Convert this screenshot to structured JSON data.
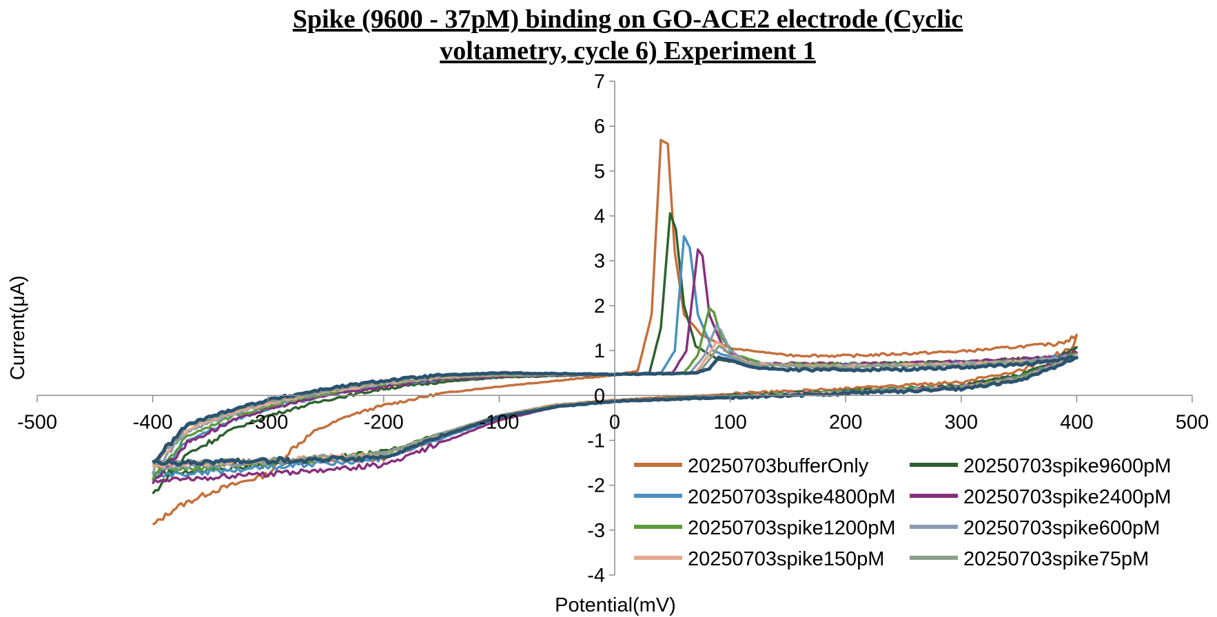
{
  "chart_data": {
    "type": "line",
    "title_lines": [
      "Spike (9600 - 37pM) binding on GO-ACE2 electrode (Cyclic",
      "voltametry, cycle 6) Experiment 1"
    ],
    "xlabel": "Potential(mV)",
    "ylabel": "Current(μA)",
    "xlim": [
      -500,
      500
    ],
    "ylim": [
      -4,
      7
    ],
    "xticks": [
      -500,
      -400,
      -300,
      -200,
      -100,
      0,
      100,
      200,
      300,
      400,
      500
    ],
    "yticks": [
      -4,
      -3,
      -2,
      -1,
      0,
      1,
      2,
      3,
      4,
      5,
      6,
      7
    ],
    "grid": false,
    "legend_position": "bottom-right",
    "series": [
      {
        "name": "20250703bufferOnly",
        "color": "#c4703c",
        "points": [
          [
            -400,
            -2.9
          ],
          [
            -380,
            -2.5
          ],
          [
            -350,
            -2.15
          ],
          [
            -300,
            -1.75
          ],
          [
            -280,
            -1.2
          ],
          [
            -260,
            -0.8
          ],
          [
            -230,
            -0.45
          ],
          [
            -200,
            -0.22
          ],
          [
            -150,
            0.05
          ],
          [
            -100,
            0.2
          ],
          [
            -50,
            0.33
          ],
          [
            0,
            0.45
          ],
          [
            20,
            0.55
          ],
          [
            32,
            1.8
          ],
          [
            40,
            5.7
          ],
          [
            46,
            5.6
          ],
          [
            52,
            3.2
          ],
          [
            60,
            1.8
          ],
          [
            75,
            1.35
          ],
          [
            100,
            1.05
          ],
          [
            150,
            0.9
          ],
          [
            200,
            0.88
          ],
          [
            300,
            0.98
          ],
          [
            380,
            1.15
          ],
          [
            400,
            1.3
          ],
          [
            395,
            1.05
          ],
          [
            350,
            0.55
          ],
          [
            300,
            0.3
          ],
          [
            200,
            0.15
          ],
          [
            100,
            0.03
          ],
          [
            0,
            -0.1
          ],
          [
            -50,
            -0.2
          ],
          [
            -100,
            -0.45
          ],
          [
            -150,
            -0.95
          ],
          [
            -200,
            -1.4
          ],
          [
            -300,
            -1.5
          ],
          [
            -400,
            -1.55
          ]
        ]
      },
      {
        "name": "20250703spike9600pM",
        "color": "#2e6130",
        "points": [
          [
            -400,
            -2.2
          ],
          [
            -370,
            -1.3
          ],
          [
            -330,
            -0.75
          ],
          [
            -300,
            -0.45
          ],
          [
            -250,
            -0.1
          ],
          [
            -200,
            0.15
          ],
          [
            -150,
            0.3
          ],
          [
            -100,
            0.4
          ],
          [
            0,
            0.47
          ],
          [
            30,
            0.5
          ],
          [
            40,
            1.5
          ],
          [
            48,
            4.05
          ],
          [
            53,
            3.7
          ],
          [
            60,
            2.0
          ],
          [
            70,
            1.1
          ],
          [
            90,
            0.8
          ],
          [
            120,
            0.68
          ],
          [
            200,
            0.7
          ],
          [
            300,
            0.75
          ],
          [
            380,
            0.85
          ],
          [
            400,
            1.05
          ],
          [
            390,
            0.85
          ],
          [
            350,
            0.45
          ],
          [
            300,
            0.22
          ],
          [
            200,
            0.1
          ],
          [
            100,
            0.0
          ],
          [
            0,
            -0.12
          ],
          [
            -50,
            -0.22
          ],
          [
            -100,
            -0.45
          ],
          [
            -150,
            -0.85
          ],
          [
            -200,
            -1.25
          ],
          [
            -300,
            -1.55
          ],
          [
            -400,
            -1.75
          ]
        ]
      },
      {
        "name": "20250703spike4800pM",
        "color": "#4a90c0",
        "points": [
          [
            -400,
            -1.9
          ],
          [
            -370,
            -1.0
          ],
          [
            -330,
            -0.55
          ],
          [
            -300,
            -0.3
          ],
          [
            -250,
            0.0
          ],
          [
            -200,
            0.22
          ],
          [
            -150,
            0.35
          ],
          [
            -100,
            0.43
          ],
          [
            0,
            0.47
          ],
          [
            40,
            0.5
          ],
          [
            52,
            1.0
          ],
          [
            60,
            3.55
          ],
          [
            65,
            3.3
          ],
          [
            72,
            1.8
          ],
          [
            85,
            1.0
          ],
          [
            110,
            0.75
          ],
          [
            150,
            0.68
          ],
          [
            250,
            0.7
          ],
          [
            350,
            0.78
          ],
          [
            400,
            0.95
          ],
          [
            390,
            0.8
          ],
          [
            350,
            0.4
          ],
          [
            300,
            0.2
          ],
          [
            200,
            0.08
          ],
          [
            100,
            -0.02
          ],
          [
            0,
            -0.12
          ],
          [
            -50,
            -0.22
          ],
          [
            -100,
            -0.5
          ],
          [
            -150,
            -0.95
          ],
          [
            -200,
            -1.4
          ],
          [
            -300,
            -1.6
          ],
          [
            -400,
            -1.8
          ]
        ]
      },
      {
        "name": "20250703spike2400pM",
        "color": "#85307c",
        "points": [
          [
            -400,
            -1.95
          ],
          [
            -370,
            -1.05
          ],
          [
            -330,
            -0.55
          ],
          [
            -300,
            -0.3
          ],
          [
            -250,
            0.0
          ],
          [
            -200,
            0.2
          ],
          [
            -150,
            0.35
          ],
          [
            -100,
            0.43
          ],
          [
            0,
            0.47
          ],
          [
            50,
            0.5
          ],
          [
            62,
            1.0
          ],
          [
            72,
            3.25
          ],
          [
            76,
            3.1
          ],
          [
            82,
            1.8
          ],
          [
            95,
            1.0
          ],
          [
            120,
            0.72
          ],
          [
            200,
            0.7
          ],
          [
            300,
            0.75
          ],
          [
            380,
            0.85
          ],
          [
            400,
            0.98
          ],
          [
            390,
            0.8
          ],
          [
            350,
            0.4
          ],
          [
            300,
            0.2
          ],
          [
            200,
            0.08
          ],
          [
            100,
            -0.02
          ],
          [
            0,
            -0.12
          ],
          [
            -50,
            -0.25
          ],
          [
            -100,
            -0.55
          ],
          [
            -150,
            -1.05
          ],
          [
            -200,
            -1.55
          ],
          [
            -300,
            -1.75
          ],
          [
            -400,
            -1.9
          ]
        ]
      },
      {
        "name": "20250703spike1200pM",
        "color": "#5e9a3e",
        "points": [
          [
            -400,
            -1.85
          ],
          [
            -370,
            -0.9
          ],
          [
            -330,
            -0.45
          ],
          [
            -300,
            -0.25
          ],
          [
            -250,
            0.05
          ],
          [
            -200,
            0.25
          ],
          [
            -150,
            0.38
          ],
          [
            -100,
            0.45
          ],
          [
            0,
            0.47
          ],
          [
            60,
            0.5
          ],
          [
            72,
            0.9
          ],
          [
            82,
            1.95
          ],
          [
            86,
            1.85
          ],
          [
            92,
            1.3
          ],
          [
            105,
            0.9
          ],
          [
            130,
            0.7
          ],
          [
            200,
            0.68
          ],
          [
            300,
            0.72
          ],
          [
            380,
            0.8
          ],
          [
            400,
            0.95
          ],
          [
            390,
            0.8
          ],
          [
            350,
            0.4
          ],
          [
            300,
            0.2
          ],
          [
            200,
            0.08
          ],
          [
            100,
            -0.02
          ],
          [
            0,
            -0.12
          ],
          [
            -50,
            -0.22
          ],
          [
            -100,
            -0.45
          ],
          [
            -150,
            -0.85
          ],
          [
            -200,
            -1.3
          ],
          [
            -300,
            -1.5
          ],
          [
            -400,
            -1.7
          ]
        ]
      },
      {
        "name": "20250703spike600pM",
        "color": "#8a9ab0",
        "points": [
          [
            -400,
            -1.7
          ],
          [
            -370,
            -0.8
          ],
          [
            -330,
            -0.4
          ],
          [
            -300,
            -0.2
          ],
          [
            -250,
            0.08
          ],
          [
            -200,
            0.28
          ],
          [
            -150,
            0.4
          ],
          [
            -100,
            0.46
          ],
          [
            0,
            0.47
          ],
          [
            65,
            0.5
          ],
          [
            78,
            0.9
          ],
          [
            88,
            1.55
          ],
          [
            92,
            1.45
          ],
          [
            100,
            1.0
          ],
          [
            115,
            0.75
          ],
          [
            150,
            0.65
          ],
          [
            250,
            0.68
          ],
          [
            350,
            0.75
          ],
          [
            400,
            0.9
          ],
          [
            390,
            0.78
          ],
          [
            350,
            0.38
          ],
          [
            300,
            0.18
          ],
          [
            200,
            0.06
          ],
          [
            100,
            -0.03
          ],
          [
            0,
            -0.12
          ],
          [
            -50,
            -0.22
          ],
          [
            -100,
            -0.45
          ],
          [
            -150,
            -0.85
          ],
          [
            -200,
            -1.3
          ],
          [
            -300,
            -1.5
          ],
          [
            -400,
            -1.6
          ]
        ]
      },
      {
        "name": "20250703spike150pM",
        "color": "#e5a890",
        "points": [
          [
            -400,
            -1.6
          ],
          [
            -370,
            -0.75
          ],
          [
            -330,
            -0.38
          ],
          [
            -300,
            -0.18
          ],
          [
            -250,
            0.08
          ],
          [
            -200,
            0.28
          ],
          [
            -150,
            0.4
          ],
          [
            -100,
            0.45
          ],
          [
            0,
            0.47
          ],
          [
            70,
            0.5
          ],
          [
            80,
            0.85
          ],
          [
            88,
            1.2
          ],
          [
            92,
            1.15
          ],
          [
            100,
            0.9
          ],
          [
            120,
            0.7
          ],
          [
            200,
            0.65
          ],
          [
            300,
            0.7
          ],
          [
            380,
            0.78
          ],
          [
            400,
            0.88
          ],
          [
            390,
            0.76
          ],
          [
            350,
            0.36
          ],
          [
            300,
            0.17
          ],
          [
            200,
            0.06
          ],
          [
            100,
            -0.03
          ],
          [
            0,
            -0.12
          ],
          [
            -50,
            -0.22
          ],
          [
            -100,
            -0.45
          ],
          [
            -150,
            -0.85
          ],
          [
            -200,
            -1.3
          ],
          [
            -300,
            -1.45
          ],
          [
            -400,
            -1.55
          ]
        ]
      },
      {
        "name": "20250703spike75pM",
        "color": "#8a9e88",
        "points": [
          [
            -400,
            -1.55
          ],
          [
            -370,
            -0.7
          ],
          [
            -330,
            -0.33
          ],
          [
            -300,
            -0.15
          ],
          [
            -250,
            0.1
          ],
          [
            -200,
            0.3
          ],
          [
            -150,
            0.42
          ],
          [
            -100,
            0.46
          ],
          [
            0,
            0.47
          ],
          [
            72,
            0.5
          ],
          [
            82,
            0.8
          ],
          [
            90,
            1.1
          ],
          [
            94,
            1.05
          ],
          [
            102,
            0.85
          ],
          [
            120,
            0.68
          ],
          [
            200,
            0.62
          ],
          [
            300,
            0.68
          ],
          [
            380,
            0.76
          ],
          [
            400,
            0.85
          ],
          [
            390,
            0.74
          ],
          [
            350,
            0.35
          ],
          [
            300,
            0.16
          ],
          [
            200,
            0.05
          ],
          [
            100,
            -0.03
          ],
          [
            0,
            -0.12
          ],
          [
            -50,
            -0.22
          ],
          [
            -100,
            -0.45
          ],
          [
            -150,
            -0.85
          ],
          [
            -200,
            -1.3
          ],
          [
            -300,
            -1.45
          ],
          [
            -400,
            -1.5
          ]
        ]
      },
      {
        "color": "#2b5370",
        "points": [
          [
            -400,
            -1.5
          ],
          [
            -370,
            -0.65
          ],
          [
            -330,
            -0.3
          ],
          [
            -300,
            -0.1
          ],
          [
            -250,
            0.15
          ],
          [
            -200,
            0.33
          ],
          [
            -150,
            0.45
          ],
          [
            -100,
            0.5
          ],
          [
            0,
            0.47
          ],
          [
            70,
            0.5
          ],
          [
            82,
            0.6
          ],
          [
            90,
            0.85
          ],
          [
            100,
            0.78
          ],
          [
            120,
            0.62
          ],
          [
            150,
            0.57
          ],
          [
            250,
            0.58
          ],
          [
            350,
            0.68
          ],
          [
            400,
            0.85
          ],
          [
            390,
            0.72
          ],
          [
            350,
            0.33
          ],
          [
            300,
            0.15
          ],
          [
            200,
            0.04
          ],
          [
            100,
            -0.04
          ],
          [
            0,
            -0.13
          ],
          [
            -50,
            -0.25
          ],
          [
            -100,
            -0.48
          ],
          [
            -150,
            -0.9
          ],
          [
            -200,
            -1.4
          ],
          [
            -300,
            -1.45
          ],
          [
            -400,
            -1.5
          ]
        ]
      }
    ]
  }
}
